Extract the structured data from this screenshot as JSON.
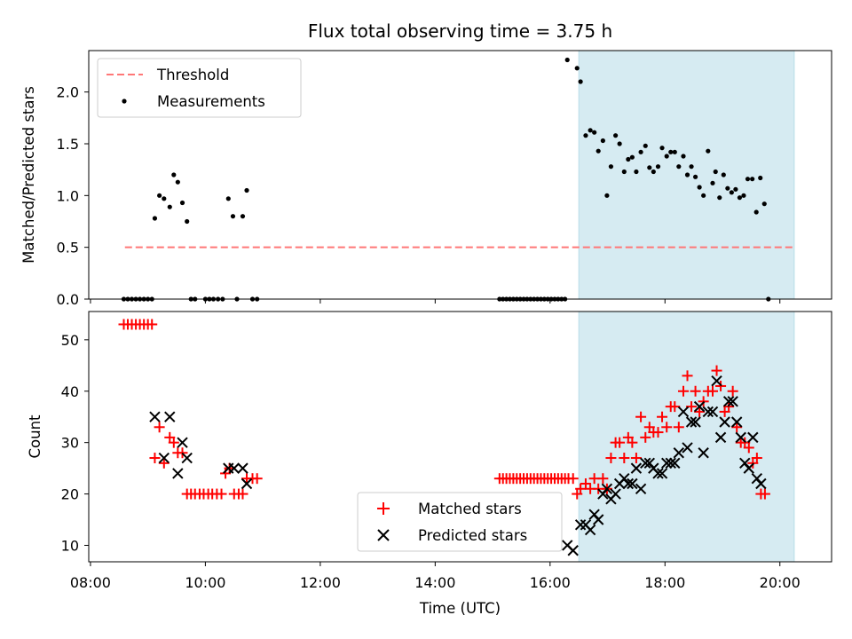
{
  "chart_data": [
    {
      "type": "scatter",
      "panel": "top",
      "title": "Flux total observing time = 3.75 h",
      "xlabel": "",
      "ylabel": "Matched/Predicted stars",
      "xlim": [
        7.97,
        20.9
      ],
      "ylim": [
        0.0,
        2.4
      ],
      "yticks": [
        0.0,
        0.5,
        1.0,
        1.5,
        2.0
      ],
      "ytick_labels": [
        "0.0",
        "0.5",
        "1.0",
        "1.5",
        "2.0"
      ],
      "xticks": [
        8,
        10,
        12,
        14,
        16,
        18,
        20
      ],
      "shaded_span": {
        "x0": 16.5,
        "x1": 20.25,
        "color": "#add8e6",
        "opacity": 0.5
      },
      "legend_location": "upper left",
      "series": [
        {
          "name": "Threshold",
          "kind": "line",
          "color": "#ff7777",
          "dash": true,
          "x": [
            8.6,
            20.25
          ],
          "y": [
            0.5,
            0.5
          ]
        },
        {
          "name": "Measurements",
          "kind": "scatter",
          "color": "#000000",
          "points": [
            [
              8.58,
              0
            ],
            [
              8.65,
              0
            ],
            [
              8.72,
              0
            ],
            [
              8.79,
              0
            ],
            [
              8.86,
              0
            ],
            [
              8.93,
              0
            ],
            [
              9.0,
              0
            ],
            [
              9.07,
              0
            ],
            [
              9.12,
              0.78
            ],
            [
              9.2,
              1.0
            ],
            [
              9.28,
              0.97
            ],
            [
              9.38,
              0.89
            ],
            [
              9.45,
              1.2
            ],
            [
              9.52,
              1.13
            ],
            [
              9.6,
              0.93
            ],
            [
              9.68,
              0.75
            ],
            [
              9.75,
              0
            ],
            [
              9.82,
              0
            ],
            [
              10.0,
              0
            ],
            [
              10.07,
              0
            ],
            [
              10.14,
              0
            ],
            [
              10.22,
              0
            ],
            [
              10.3,
              0
            ],
            [
              10.4,
              0.97
            ],
            [
              10.48,
              0.8
            ],
            [
              10.55,
              0
            ],
            [
              10.65,
              0.8
            ],
            [
              10.72,
              1.05
            ],
            [
              10.82,
              0
            ],
            [
              10.9,
              0
            ],
            [
              15.12,
              0
            ],
            [
              15.18,
              0
            ],
            [
              15.24,
              0
            ],
            [
              15.3,
              0
            ],
            [
              15.36,
              0
            ],
            [
              15.42,
              0
            ],
            [
              15.48,
              0
            ],
            [
              15.54,
              0
            ],
            [
              15.6,
              0
            ],
            [
              15.66,
              0
            ],
            [
              15.72,
              0
            ],
            [
              15.78,
              0
            ],
            [
              15.84,
              0
            ],
            [
              15.9,
              0
            ],
            [
              15.96,
              0
            ],
            [
              16.02,
              0
            ],
            [
              16.08,
              0
            ],
            [
              16.14,
              0
            ],
            [
              16.2,
              0
            ],
            [
              16.26,
              0
            ],
            [
              16.3,
              2.31
            ],
            [
              16.47,
              2.23
            ],
            [
              16.53,
              2.1
            ],
            [
              16.62,
              1.58
            ],
            [
              16.7,
              1.63
            ],
            [
              16.77,
              1.61
            ],
            [
              16.84,
              1.43
            ],
            [
              16.92,
              1.53
            ],
            [
              16.99,
              1.0
            ],
            [
              17.06,
              1.28
            ],
            [
              17.14,
              1.58
            ],
            [
              17.21,
              1.5
            ],
            [
              17.29,
              1.23
            ],
            [
              17.36,
              1.35
            ],
            [
              17.43,
              1.37
            ],
            [
              17.5,
              1.23
            ],
            [
              17.58,
              1.42
            ],
            [
              17.66,
              1.48
            ],
            [
              17.73,
              1.27
            ],
            [
              17.8,
              1.23
            ],
            [
              17.88,
              1.28
            ],
            [
              17.95,
              1.46
            ],
            [
              18.03,
              1.38
            ],
            [
              18.1,
              1.42
            ],
            [
              18.17,
              1.42
            ],
            [
              18.24,
              1.28
            ],
            [
              18.32,
              1.38
            ],
            [
              18.39,
              1.2
            ],
            [
              18.46,
              1.28
            ],
            [
              18.53,
              1.18
            ],
            [
              18.6,
              1.08
            ],
            [
              18.67,
              1.0
            ],
            [
              18.75,
              1.43
            ],
            [
              18.83,
              1.12
            ],
            [
              18.88,
              1.23
            ],
            [
              18.95,
              0.98
            ],
            [
              19.02,
              1.2
            ],
            [
              19.09,
              1.07
            ],
            [
              19.16,
              1.03
            ],
            [
              19.23,
              1.06
            ],
            [
              19.3,
              0.98
            ],
            [
              19.37,
              1.0
            ],
            [
              19.44,
              1.16
            ],
            [
              19.52,
              1.16
            ],
            [
              19.59,
              0.84
            ],
            [
              19.66,
              1.17
            ],
            [
              19.73,
              0.92
            ],
            [
              19.8,
              0
            ]
          ]
        }
      ]
    },
    {
      "type": "scatter",
      "panel": "bottom",
      "xlabel": "Time (UTC)",
      "ylabel": "Count",
      "xlim": [
        7.97,
        20.9
      ],
      "ylim": [
        6.8,
        55.5
      ],
      "yticks": [
        10,
        20,
        30,
        40,
        50
      ],
      "ytick_labels": [
        "10",
        "20",
        "30",
        "40",
        "50"
      ],
      "xticks": [
        8,
        10,
        12,
        14,
        16,
        18,
        20
      ],
      "xtick_labels": [
        "08:00",
        "10:00",
        "12:00",
        "14:00",
        "16:00",
        "18:00",
        "20:00"
      ],
      "shaded_span": {
        "x0": 16.5,
        "x1": 20.25,
        "color": "#add8e6",
        "opacity": 0.5
      },
      "legend_location": "lower center",
      "series": [
        {
          "name": "Matched stars",
          "kind": "plus",
          "color": "#ff0000",
          "points": [
            [
              8.58,
              53
            ],
            [
              8.65,
              53
            ],
            [
              8.72,
              53
            ],
            [
              8.79,
              53
            ],
            [
              8.86,
              53
            ],
            [
              8.93,
              53
            ],
            [
              9.0,
              53
            ],
            [
              9.07,
              53
            ],
            [
              9.12,
              27
            ],
            [
              9.2,
              33
            ],
            [
              9.28,
              26
            ],
            [
              9.38,
              31
            ],
            [
              9.45,
              30
            ],
            [
              9.52,
              28
            ],
            [
              9.6,
              28
            ],
            [
              9.68,
              20
            ],
            [
              9.75,
              20
            ],
            [
              9.82,
              20
            ],
            [
              9.9,
              20
            ],
            [
              9.97,
              20
            ],
            [
              10.05,
              20
            ],
            [
              10.12,
              20
            ],
            [
              10.2,
              20
            ],
            [
              10.28,
              20
            ],
            [
              10.35,
              24
            ],
            [
              10.42,
              25
            ],
            [
              10.5,
              20
            ],
            [
              10.58,
              20
            ],
            [
              10.65,
              20
            ],
            [
              10.72,
              23
            ],
            [
              10.82,
              23
            ],
            [
              10.9,
              23
            ],
            [
              15.12,
              23
            ],
            [
              15.18,
              23
            ],
            [
              15.24,
              23
            ],
            [
              15.3,
              23
            ],
            [
              15.36,
              23
            ],
            [
              15.42,
              23
            ],
            [
              15.48,
              23
            ],
            [
              15.54,
              23
            ],
            [
              15.6,
              23
            ],
            [
              15.66,
              23
            ],
            [
              15.72,
              23
            ],
            [
              15.78,
              23
            ],
            [
              15.84,
              23
            ],
            [
              15.9,
              23
            ],
            [
              15.96,
              23
            ],
            [
              16.02,
              23
            ],
            [
              16.08,
              23
            ],
            [
              16.14,
              23
            ],
            [
              16.2,
              23
            ],
            [
              16.26,
              23
            ],
            [
              16.32,
              23
            ],
            [
              16.4,
              23
            ],
            [
              16.47,
              20
            ],
            [
              16.53,
              21
            ],
            [
              16.62,
              22
            ],
            [
              16.7,
              21
            ],
            [
              16.77,
              23
            ],
            [
              16.84,
              21
            ],
            [
              16.92,
              23
            ],
            [
              16.99,
              21
            ],
            [
              17.06,
              27
            ],
            [
              17.14,
              30
            ],
            [
              17.21,
              30
            ],
            [
              17.29,
              27
            ],
            [
              17.36,
              31
            ],
            [
              17.43,
              30
            ],
            [
              17.5,
              27
            ],
            [
              17.58,
              35
            ],
            [
              17.66,
              31
            ],
            [
              17.73,
              33
            ],
            [
              17.8,
              32
            ],
            [
              17.88,
              32
            ],
            [
              17.95,
              35
            ],
            [
              18.03,
              33
            ],
            [
              18.1,
              37
            ],
            [
              18.17,
              37
            ],
            [
              18.24,
              33
            ],
            [
              18.32,
              40
            ],
            [
              18.39,
              43
            ],
            [
              18.46,
              37
            ],
            [
              18.53,
              40
            ],
            [
              18.6,
              36
            ],
            [
              18.67,
              38
            ],
            [
              18.75,
              40
            ],
            [
              18.83,
              40
            ],
            [
              18.9,
              44
            ],
            [
              18.97,
              41
            ],
            [
              19.04,
              36
            ],
            [
              19.11,
              37
            ],
            [
              19.18,
              40
            ],
            [
              19.25,
              33
            ],
            [
              19.32,
              30
            ],
            [
              19.39,
              30
            ],
            [
              19.46,
              29
            ],
            [
              19.53,
              26
            ],
            [
              19.6,
              27
            ],
            [
              19.67,
              20
            ],
            [
              19.74,
              20
            ]
          ]
        },
        {
          "name": "Predicted stars",
          "kind": "x",
          "color": "#000000",
          "points": [
            [
              9.12,
              35
            ],
            [
              9.28,
              27
            ],
            [
              9.38,
              35
            ],
            [
              9.52,
              24
            ],
            [
              9.6,
              30
            ],
            [
              9.68,
              27
            ],
            [
              10.4,
              25
            ],
            [
              10.5,
              25
            ],
            [
              10.65,
              25
            ],
            [
              10.72,
              22
            ],
            [
              16.3,
              10
            ],
            [
              16.4,
              9
            ],
            [
              16.53,
              14
            ],
            [
              16.62,
              14
            ],
            [
              16.7,
              13
            ],
            [
              16.77,
              16
            ],
            [
              16.84,
              15
            ],
            [
              16.92,
              20
            ],
            [
              16.99,
              21
            ],
            [
              17.06,
              19
            ],
            [
              17.14,
              20
            ],
            [
              17.21,
              22
            ],
            [
              17.29,
              23
            ],
            [
              17.36,
              22
            ],
            [
              17.43,
              22
            ],
            [
              17.5,
              25
            ],
            [
              17.58,
              21
            ],
            [
              17.66,
              26
            ],
            [
              17.73,
              26
            ],
            [
              17.8,
              25
            ],
            [
              17.88,
              24
            ],
            [
              17.95,
              24
            ],
            [
              18.03,
              26
            ],
            [
              18.1,
              26
            ],
            [
              18.17,
              26
            ],
            [
              18.24,
              28
            ],
            [
              18.32,
              36
            ],
            [
              18.39,
              29
            ],
            [
              18.46,
              34
            ],
            [
              18.53,
              34
            ],
            [
              18.6,
              37
            ],
            [
              18.67,
              28
            ],
            [
              18.75,
              36
            ],
            [
              18.83,
              36
            ],
            [
              18.9,
              42
            ],
            [
              18.97,
              31
            ],
            [
              19.04,
              34
            ],
            [
              19.11,
              38
            ],
            [
              19.18,
              38
            ],
            [
              19.25,
              34
            ],
            [
              19.32,
              31
            ],
            [
              19.39,
              26
            ],
            [
              19.46,
              25
            ],
            [
              19.53,
              31
            ],
            [
              19.6,
              23
            ],
            [
              19.67,
              22
            ]
          ]
        }
      ]
    }
  ]
}
